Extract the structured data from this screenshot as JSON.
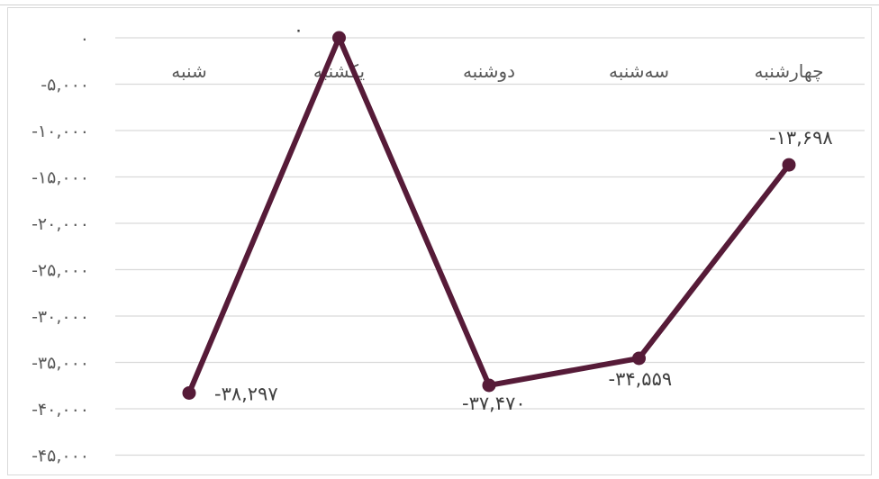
{
  "chart_data": {
    "type": "line",
    "categories": [
      "شنبه",
      "یکشنبه",
      "دوشنبه",
      "سه‌شنبه",
      "چهارشنبه"
    ],
    "series": [
      {
        "values": [
          -38297,
          0,
          -37470,
          -34559,
          -13698
        ],
        "color": "#561b38"
      }
    ],
    "data_labels": [
      "-۳۸,۲۹۷",
      "۰",
      "-۳۷,۴۷۰",
      "-۳۴,۵۵۹",
      "-۱۳,۶۹۸"
    ],
    "ylim": [
      -45000,
      0
    ],
    "yticks": [
      0,
      -5000,
      -10000,
      -15000,
      -20000,
      -25000,
      -30000,
      -35000,
      -40000,
      -45000
    ],
    "ytick_labels": [
      "۰",
      "-۵,۰۰۰",
      "-۱۰,۰۰۰",
      "-۱۵,۰۰۰",
      "-۲۰,۰۰۰",
      "-۲۵,۰۰۰",
      "-۳۰,۰۰۰",
      "-۳۵,۰۰۰",
      "-۴۰,۰۰۰",
      "-۴۵,۰۰۰"
    ],
    "grid": true,
    "category_axis_position": "top",
    "gridline_color": "#d9d9d9",
    "label_color": "#595959"
  }
}
